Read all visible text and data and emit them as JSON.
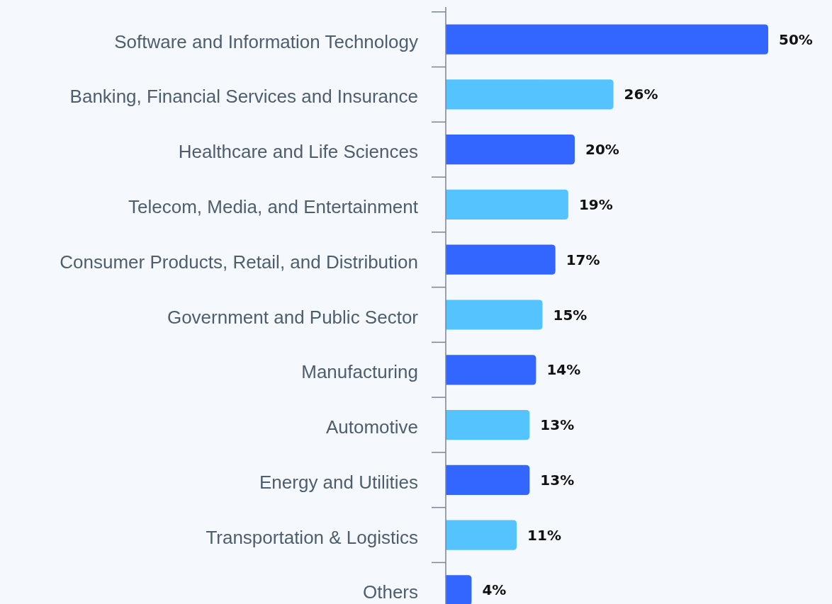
{
  "chart_data": {
    "type": "bar",
    "orientation": "horizontal",
    "value_labels": [
      "50%",
      "26%",
      "20%",
      "19%",
      "17%",
      "15%",
      "14%",
      "13%",
      "13%",
      "11%",
      "4%"
    ],
    "categories": [
      "Software and Information Technology",
      "Banking, Financial Services and Insurance",
      "Healthcare and Life Sciences",
      "Telecom, Media, and Entertainment",
      "Consumer Products, Retail, and Distribution",
      "Government and Public Sector",
      "Manufacturing",
      "Automotive",
      "Energy and Utilities",
      "Transportation & Logistics",
      "Others"
    ],
    "values": [
      50,
      26,
      20,
      19,
      17,
      15,
      14,
      13,
      13,
      11,
      4
    ],
    "colors": [
      "#3366ff",
      "#55c3fd",
      "#3366ff",
      "#55c3fd",
      "#3366ff",
      "#55c3fd",
      "#3366ff",
      "#55c3fd",
      "#3366ff",
      "#55c3fd",
      "#3366ff"
    ]
  }
}
